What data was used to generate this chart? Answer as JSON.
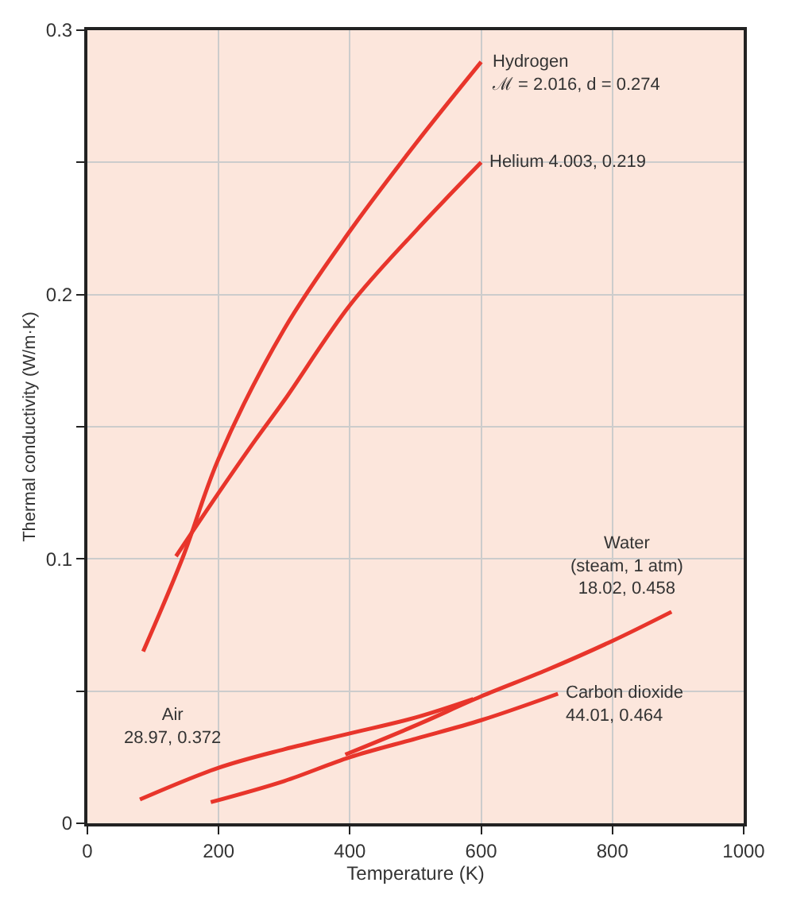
{
  "chart_data": {
    "type": "line",
    "xlabel": "Temperature (K)",
    "ylabel": "Thermal conductivity (W/m·K)",
    "xlim": [
      0,
      1000
    ],
    "xticks": [
      0,
      200,
      400,
      600,
      800,
      1000
    ],
    "ylim": [
      0,
      0.3
    ],
    "yticks": [
      0,
      {
        "value": 0.05,
        "label": null
      },
      0.1,
      {
        "value": 0.15,
        "label": null
      },
      0.2,
      {
        "value": 0.25,
        "label": null
      },
      0.3
    ],
    "grid": true,
    "marker": "none",
    "line_style": "solid",
    "series": [
      {
        "color": "#e8352b",
        "x": [
          85,
          146,
          200,
          300,
          400,
          500,
          600
        ],
        "values": [
          0.065,
          0.101,
          0.138,
          0.187,
          0.224,
          0.257,
          0.288
        ]
      },
      {
        "color": "#e8352b",
        "x": [
          135,
          200,
          256,
          300,
          400,
          500,
          600
        ],
        "values": [
          0.101,
          0.125,
          0.145,
          0.16,
          0.196,
          0.224,
          0.25
        ]
      },
      {
        "color": "#e8352b",
        "x": [
          80,
          200,
          300,
          400,
          500,
          588
        ],
        "values": [
          0.009,
          0.021,
          0.028,
          0.034,
          0.04,
          0.047
        ]
      },
      {
        "color": "#e8352b",
        "x": [
          393,
          500,
          600,
          700,
          800,
          890
        ],
        "values": [
          0.026,
          0.037,
          0.048,
          0.058,
          0.069,
          0.08
        ]
      },
      {
        "color": "#e8352b",
        "x": [
          188,
          300,
          400,
          500,
          600,
          717
        ],
        "values": [
          0.008,
          0.016,
          0.025,
          0.032,
          0.039,
          0.049
        ]
      }
    ],
    "annotations": [
      {
        "text": "Hydrogen\nℳ = 2.016, d = 0.274",
        "x": 600,
        "y": 0.288
      },
      {
        "text": "Helium 4.003, 0.219",
        "x": 600,
        "y": 0.25
      },
      {
        "text": "Water\n(steam, 1 atm)\n18.02, 0.458",
        "x": 890,
        "y": 0.08
      },
      {
        "text": "Carbon dioxide\n44.01, 0.464",
        "x": 717,
        "y": 0.049
      },
      "Air\n28.97, 0.372"
    ]
  }
}
